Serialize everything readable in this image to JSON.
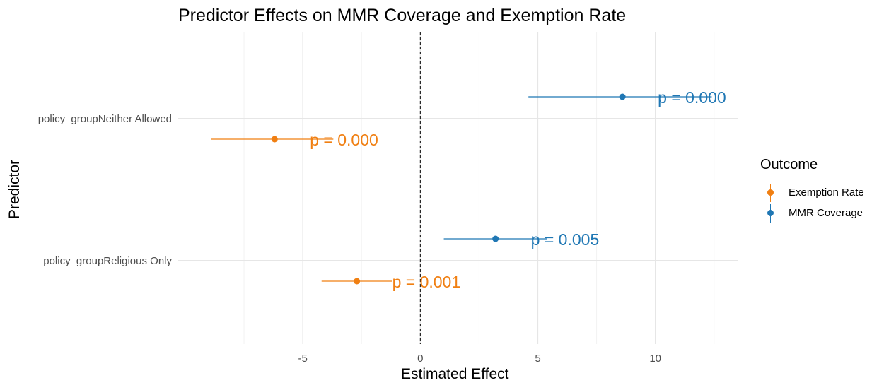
{
  "chart_data": {
    "type": "scatter",
    "subtype": "coefficient-plot",
    "title": "Predictor Effects on MMR Coverage and Exemption Rate",
    "xlabel": "Estimated Effect",
    "ylabel": "Predictor",
    "xlim": [
      -10.3,
      13.5
    ],
    "x_ticks": [
      -5,
      0,
      5,
      10
    ],
    "x_tick_labels": [
      "-5",
      "0",
      "5",
      "10"
    ],
    "categories": [
      "policy_groupNeither Allowed",
      "policy_groupReligious Only"
    ],
    "reference_line": {
      "x": 0,
      "style": "dashed"
    },
    "grid": true,
    "legend": {
      "title": "Outcome",
      "position": "right",
      "entries": [
        "Exemption Rate",
        "MMR Coverage"
      ]
    },
    "series": [
      {
        "name": "Exemption Rate",
        "color": "#F07F12",
        "points": [
          {
            "category": "policy_groupNeither Allowed",
            "estimate": -6.2,
            "ci_low": -8.9,
            "ci_high": -3.7,
            "label": "p = 0.000"
          },
          {
            "category": "policy_groupReligious Only",
            "estimate": -2.7,
            "ci_low": -4.2,
            "ci_high": -1.2,
            "label": "p = 0.001"
          }
        ]
      },
      {
        "name": "MMR Coverage",
        "color": "#1F77B4",
        "points": [
          {
            "category": "policy_groupNeither Allowed",
            "estimate": 8.6,
            "ci_low": 4.6,
            "ci_high": 12.4,
            "label": "p = 0.000"
          },
          {
            "category": "policy_groupReligious Only",
            "estimate": 3.2,
            "ci_low": 1.0,
            "ci_high": 5.4,
            "label": "p = 0.005"
          }
        ]
      }
    ]
  }
}
